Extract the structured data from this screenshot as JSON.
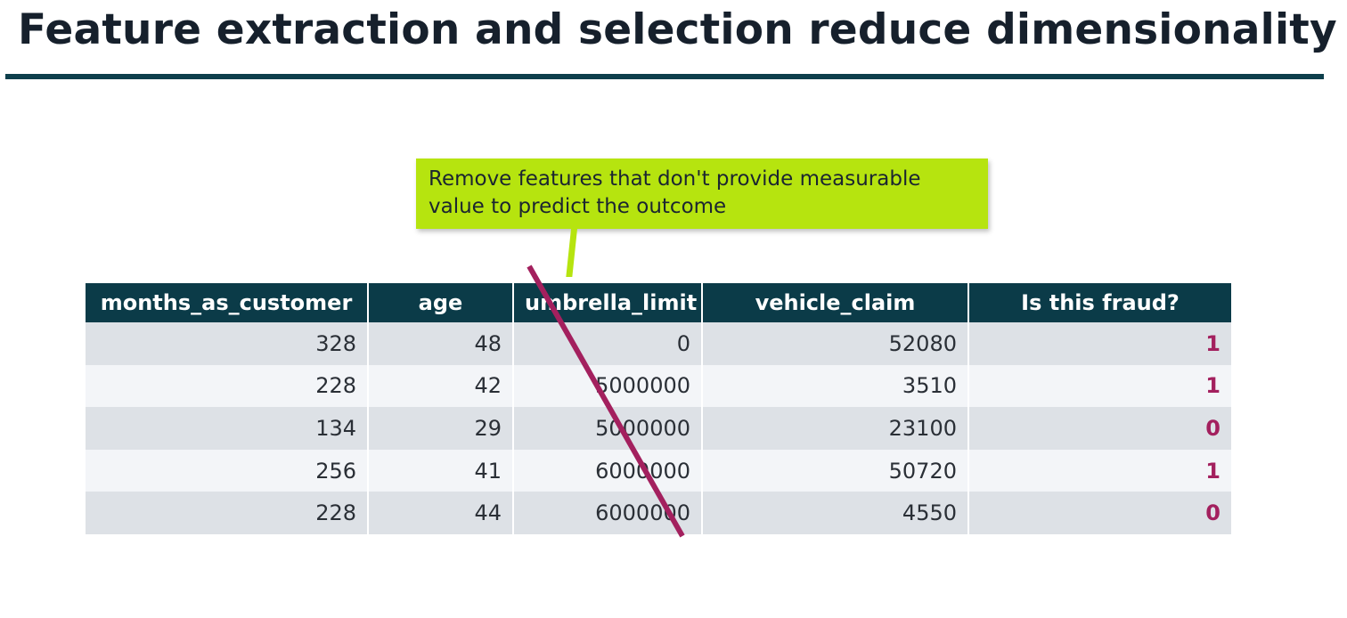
{
  "slide": {
    "title": "Feature extraction and selection reduce dimensionality",
    "callout_text": "Remove features that don't provide measurable value to predict the outcome"
  },
  "table": {
    "columns": [
      "months_as_customer",
      "age",
      "umbrella_limit",
      "vehicle_claim",
      "Is this fraud?"
    ],
    "rows": [
      [
        "328",
        "48",
        "0",
        "52080",
        "1"
      ],
      [
        "228",
        "42",
        "5000000",
        "3510",
        "1"
      ],
      [
        "134",
        "29",
        "5000000",
        "23100",
        "0"
      ],
      [
        "256",
        "41",
        "6000000",
        "50720",
        "1"
      ],
      [
        "228",
        "44",
        "6000000",
        "4550",
        "0"
      ]
    ]
  },
  "colors": {
    "header_bg": "#0b3b48",
    "title_rule": "#0e3f4c",
    "callout_bg": "#b6e40f",
    "strike_line": "#a3205e",
    "fraud_value": "#a3205e"
  }
}
